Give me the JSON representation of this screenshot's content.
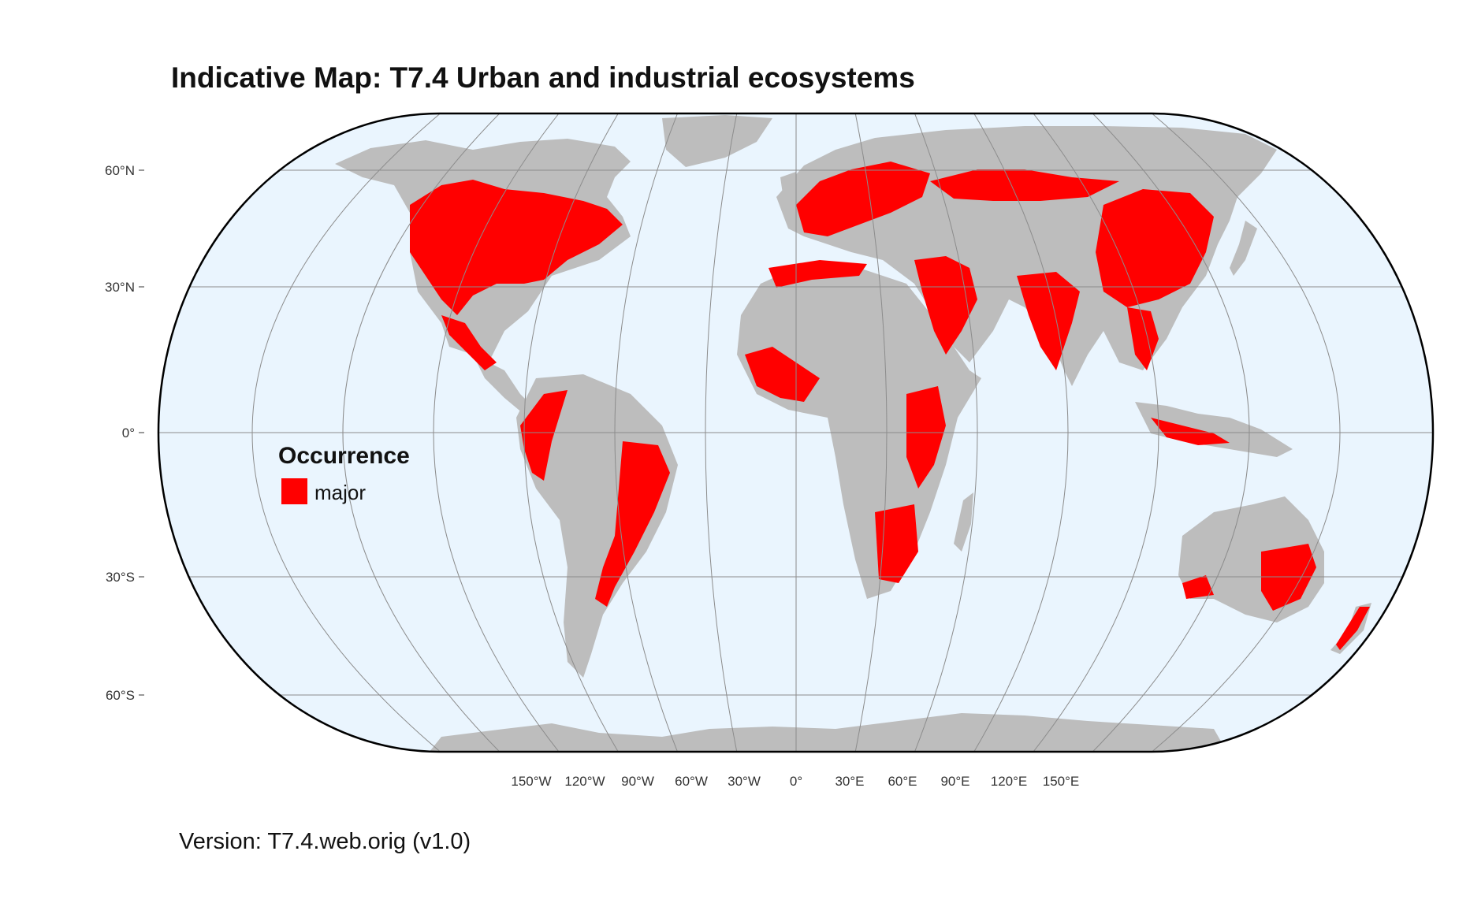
{
  "title": "Indicative Map: T7.4 Urban and industrial ecosystems",
  "projection": "Eckert IV",
  "colors": {
    "ocean": "#eaf5fe",
    "land": "#bdbdbd",
    "occurrence_major": "#ff0000",
    "graticule": "#8c8c8c",
    "border": "#000000"
  },
  "latitude_labels": [
    "60°N",
    "30°N",
    "0°",
    "30°S",
    "60°S"
  ],
  "longitude_labels": [
    "150°W",
    "120°W",
    "90°W",
    "60°W",
    "30°W",
    "0°",
    "30°E",
    "60°E",
    "90°E",
    "120°E",
    "150°E"
  ],
  "legend": {
    "title": "Occurrence",
    "items": [
      {
        "label": "major",
        "color": "#ff0000"
      }
    ]
  },
  "version_text": "Version: T7.4.web.orig (v1.0)"
}
